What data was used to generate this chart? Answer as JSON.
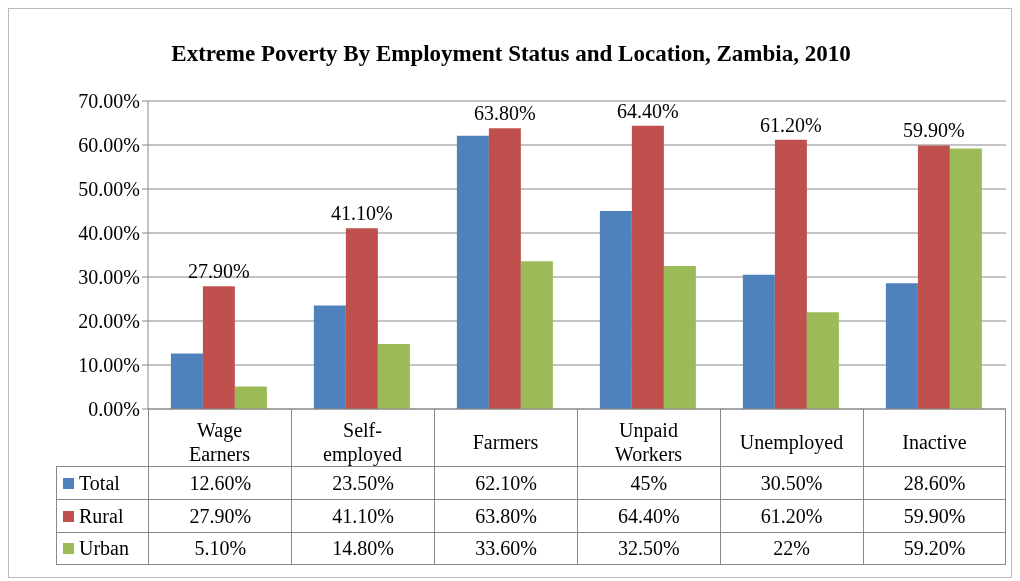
{
  "chart_data": {
    "type": "bar",
    "title": "Extreme Poverty By Employment Status and Location, Zambia, 2010",
    "categories": [
      "Wage Earners",
      "Self-employed",
      "Farmers",
      "Unpaid Workers",
      "Unemployed",
      "Inactive"
    ],
    "series": [
      {
        "name": "Total",
        "color": "#4f81bd",
        "values": [
          12.6,
          23.5,
          62.1,
          45,
          30.5,
          28.6
        ],
        "value_labels": [
          "12.60%",
          "23.50%",
          "62.10%",
          "45%",
          "30.50%",
          "28.60%"
        ]
      },
      {
        "name": "Rural",
        "color": "#c0504d",
        "values": [
          27.9,
          41.1,
          63.8,
          64.4,
          61.2,
          59.9
        ],
        "value_labels": [
          "27.90%",
          "41.10%",
          "63.80%",
          "64.40%",
          "61.20%",
          "59.90%"
        ],
        "data_labels": true
      },
      {
        "name": "Urban",
        "color": "#9bbb59",
        "values": [
          5.1,
          14.8,
          33.6,
          32.5,
          22,
          59.2
        ],
        "value_labels": [
          "5.10%",
          "14.80%",
          "33.60%",
          "32.50%",
          "22%",
          "59.20%"
        ]
      }
    ],
    "ylim": [
      0,
      70
    ],
    "yticks": [
      {
        "value": 0,
        "label": "0.00%"
      },
      {
        "value": 10,
        "label": "10.00%"
      },
      {
        "value": 20,
        "label": "20.00%"
      },
      {
        "value": 30,
        "label": "30.00%"
      },
      {
        "value": 40,
        "label": "40.00%"
      },
      {
        "value": 50,
        "label": "50.00%"
      },
      {
        "value": 60,
        "label": "60.00%"
      },
      {
        "value": 70,
        "label": "70.00%"
      }
    ],
    "grid": "y",
    "legend": "bottom"
  }
}
